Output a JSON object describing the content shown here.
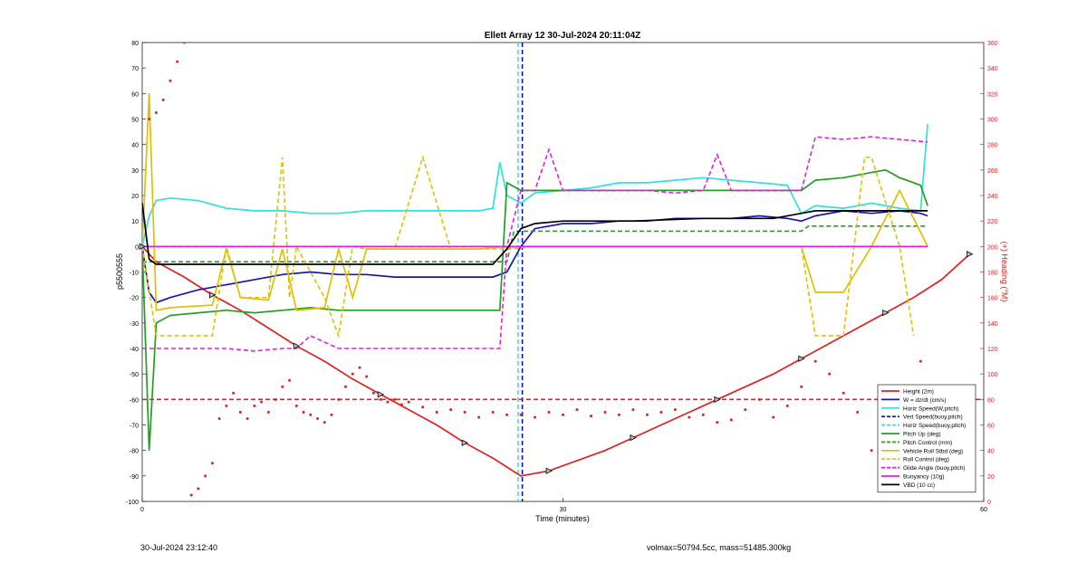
{
  "chart_data": {
    "type": "line",
    "title": "Ellett Array 12 30-Jul-2024 20:11:04Z",
    "xlabel": "Time (minutes)",
    "ylabel": "p5500555",
    "y2label": "(+) Heading (°M)",
    "xlim": [
      0,
      60
    ],
    "ylim": [
      -100,
      80
    ],
    "y2lim": [
      0,
      360
    ],
    "xticks": [
      "0",
      "30",
      "60"
    ],
    "yticks": [
      80,
      70,
      60,
      50,
      40,
      30,
      20,
      10,
      0,
      -10,
      -20,
      -30,
      -40,
      -50,
      -60,
      -70,
      -80,
      -90,
      -100
    ],
    "y2ticks": [
      360,
      340,
      320,
      300,
      280,
      260,
      240,
      220,
      200,
      180,
      160,
      140,
      120,
      100,
      80,
      60,
      40,
      20,
      0
    ],
    "grid": false,
    "legend_position": "bottom-right",
    "reference_lines": [
      {
        "orientation": "vertical",
        "x": 27.1,
        "color": "#1010cc",
        "style": "dashed"
      },
      {
        "orientation": "vertical",
        "x": 26.8,
        "color": "#30dddd",
        "style": "dashed"
      },
      {
        "orientation": "horizontal",
        "y": -60,
        "color": "#dd2222",
        "style": "dashed"
      }
    ],
    "series": [
      {
        "name": "Height (2m)",
        "color": "#e02020",
        "style": "solid",
        "axis": "left",
        "x": [
          0,
          1,
          3,
          5,
          7,
          9,
          11,
          13,
          15,
          17,
          19,
          21,
          23,
          25,
          27,
          29,
          31,
          33,
          35,
          37,
          39,
          41,
          43,
          45,
          47,
          49,
          51,
          53,
          55,
          57,
          59
        ],
        "y": [
          0,
          -6,
          -12,
          -19,
          -25,
          -32,
          -39,
          -45,
          -52,
          -58,
          -64,
          -70,
          -77,
          -83,
          -90,
          -88,
          -84,
          -80,
          -75,
          -70,
          -65,
          -60,
          -55,
          -50,
          -44,
          -38,
          -32,
          -26,
          -20,
          -13,
          -3
        ]
      },
      {
        "name": "W = dz/dt (cm/s)",
        "color": "#1515b8",
        "style": "solid",
        "axis": "left",
        "x": [
          0,
          0.5,
          1,
          2,
          4,
          6,
          8,
          10,
          12,
          14,
          16,
          18,
          20,
          22,
          24,
          25,
          26,
          27,
          28,
          30,
          32,
          34,
          36,
          38,
          40,
          42,
          44,
          46,
          47,
          48,
          50,
          52,
          54,
          55.5,
          56
        ],
        "y": [
          0,
          -18,
          -22,
          -20,
          -17,
          -15,
          -13,
          -11,
          -10,
          -11,
          -11,
          -12,
          -12,
          -12,
          -12,
          -12,
          -10,
          0,
          7,
          9,
          9,
          10,
          10,
          11,
          11,
          11,
          12,
          11,
          10,
          12,
          14,
          13,
          14,
          13,
          12
        ]
      },
      {
        "name": "Horiz Speed(W,pitch)",
        "color": "#30e0e0",
        "style": "solid",
        "axis": "left",
        "x": [
          0,
          0.5,
          1,
          2,
          4,
          6,
          8,
          10,
          12,
          14,
          16,
          18,
          20,
          22,
          24,
          25,
          25.5,
          26,
          27,
          28,
          30,
          32,
          34,
          36,
          38,
          40,
          42,
          44,
          46,
          47,
          48,
          50,
          52,
          54,
          55.5,
          56
        ],
        "y": [
          0,
          12,
          18,
          19,
          18,
          15,
          14,
          14,
          13,
          13,
          14,
          14,
          14,
          14,
          14,
          15,
          33,
          20,
          17,
          21,
          22,
          23,
          25,
          25,
          26,
          27,
          26,
          25,
          24,
          13,
          16,
          15,
          17,
          15,
          14,
          48
        ]
      },
      {
        "name": "Vert Speed(buoy,pitch)",
        "color": "#1515b8",
        "style": "dashed",
        "axis": "left",
        "x": [
          0,
          27,
          56
        ],
        "y": [
          0,
          0,
          0
        ]
      },
      {
        "name": "Horiz Speed(buoy,pitch)",
        "color": "#30e0e0",
        "style": "dashed",
        "axis": "left",
        "x": [
          0,
          27,
          56
        ],
        "y": [
          0,
          0,
          0
        ]
      },
      {
        "name": "Pitch Up (deg)",
        "color": "#20a020",
        "style": "solid",
        "axis": "left",
        "x": [
          0,
          0.5,
          1,
          2,
          4,
          6,
          8,
          10,
          12,
          14,
          16,
          18,
          20,
          22,
          24,
          25.5,
          26,
          27,
          28,
          30,
          32,
          34,
          36,
          38,
          40,
          42,
          44,
          46,
          47,
          48,
          50,
          52,
          53,
          54,
          55.5,
          56
        ],
        "y": [
          0,
          -80,
          -30,
          -27,
          -26,
          -25,
          -26,
          -25,
          -24,
          -25,
          -25,
          -25,
          -25,
          -25,
          -25,
          -25,
          25,
          22,
          22,
          22,
          22,
          22,
          22,
          22,
          22,
          22,
          22,
          22,
          22,
          26,
          27,
          29,
          30,
          27,
          24,
          16
        ]
      },
      {
        "name": "Pitch Control (mm)",
        "color": "#20a020",
        "style": "dashed",
        "axis": "left",
        "x": [
          0,
          26,
          26.5,
          47,
          47.5,
          56
        ],
        "y": [
          -6,
          -6,
          6,
          6,
          8,
          8
        ]
      },
      {
        "name": "Vehicle Roll Stbd (deg)",
        "color": "#e0c000",
        "style": "solid",
        "axis": "left",
        "x": [
          0,
          0.5,
          1,
          2,
          5,
          6,
          7,
          9,
          10,
          11,
          13,
          14,
          15,
          16,
          18,
          20,
          22,
          24,
          26,
          28,
          30,
          35,
          40,
          45,
          47,
          48,
          50,
          52,
          54,
          56
        ],
        "y": [
          0,
          60,
          -25,
          -24,
          -23,
          -1,
          -20,
          -21,
          -1,
          -25,
          -24,
          -1,
          -20,
          -1,
          -1,
          -1,
          -1,
          -1,
          0,
          0,
          0,
          0,
          0,
          0,
          0,
          -18,
          -18,
          0,
          22,
          0
        ]
      },
      {
        "name": "Roll Control (deg)",
        "color": "#e0c000",
        "style": "dashed",
        "axis": "left",
        "x": [
          0,
          1,
          5,
          6,
          7,
          9,
          10,
          10.5,
          11,
          13,
          14,
          15,
          16,
          18,
          20,
          22,
          24,
          26,
          28,
          30,
          35,
          40,
          45,
          47,
          48,
          50,
          51.5,
          52,
          54,
          55
        ],
        "y": [
          0,
          -35,
          -35,
          0,
          -20,
          -20,
          35,
          -20,
          0,
          -20,
          -35,
          0,
          -1,
          -1,
          35,
          -1,
          -1,
          -1,
          0,
          0,
          0,
          0,
          0,
          0,
          -35,
          -35,
          35,
          35,
          0,
          -35
        ]
      },
      {
        "name": "Glide Angle (buoy,pitch)",
        "color": "#dd20dd",
        "style": "dashed",
        "axis": "left",
        "x": [
          0,
          1,
          4,
          6,
          8,
          10,
          11,
          12,
          14,
          16,
          18,
          20,
          22,
          24,
          25.5,
          26,
          27,
          28,
          29,
          30,
          32,
          34,
          36,
          38,
          40,
          41,
          42,
          44,
          46,
          47,
          48,
          50,
          52,
          54,
          56
        ],
        "y": [
          -40,
          -40,
          -40,
          -40,
          -41,
          -40,
          -40,
          -35,
          -40,
          -40,
          -40,
          -40,
          -40,
          -40,
          -40,
          0,
          22,
          22,
          38,
          22,
          22,
          22,
          22,
          21,
          22,
          36,
          22,
          22,
          22,
          22,
          43,
          42,
          43,
          42,
          41
        ]
      },
      {
        "name": "Buoyancy (10g)",
        "color": "#dd20dd",
        "style": "solid",
        "axis": "left",
        "x": [
          0,
          27,
          56
        ],
        "y": [
          0,
          0,
          0
        ]
      },
      {
        "name": "VBD (10 cc)",
        "color": "#000000",
        "style": "solid",
        "axis": "left",
        "x": [
          0,
          0.5,
          1,
          5,
          10,
          15,
          20,
          25,
          26,
          27,
          28,
          30,
          35,
          40,
          45,
          47,
          48,
          50,
          55,
          56
        ],
        "y": [
          17,
          -5,
          -7,
          -7,
          -7,
          -7,
          -7,
          -7,
          -1,
          7,
          9,
          10,
          10,
          11,
          11,
          13,
          14,
          14,
          14,
          14
        ]
      },
      {
        "name": "",
        "color": "#dd2222",
        "style": "dotted",
        "axis": "right",
        "x": [
          0.5,
          1,
          1.5,
          2,
          2.5,
          3,
          3.5,
          4,
          4.5,
          5,
          5.5,
          6,
          6.5,
          7,
          7.5,
          8,
          8.5,
          9,
          9.5,
          10,
          10.5,
          11,
          11.5,
          12,
          12.5,
          13,
          13.5,
          14,
          14.5,
          15,
          15.5,
          16,
          16.5,
          17,
          17.5,
          18,
          18.5,
          19,
          20,
          21,
          22,
          23,
          24,
          25,
          26,
          27,
          28,
          29,
          30,
          31,
          32,
          33,
          34,
          35,
          36,
          37,
          38,
          39,
          40,
          41,
          42,
          43,
          44,
          45,
          46,
          47,
          48,
          49,
          50,
          51,
          52,
          53,
          54,
          55,
          55.5
        ],
        "y": [
          300,
          305,
          315,
          330,
          345,
          360,
          5,
          10,
          20,
          30,
          65,
          75,
          85,
          70,
          65,
          75,
          78,
          70,
          80,
          90,
          95,
          75,
          70,
          68,
          65,
          62,
          68,
          80,
          90,
          100,
          105,
          98,
          85,
          80,
          78,
          80,
          76,
          78,
          74,
          70,
          72,
          70,
          66,
          70,
          68,
          68,
          66,
          70,
          68,
          72,
          67,
          70,
          68,
          72,
          68,
          70,
          72,
          66,
          68,
          62,
          64,
          72,
          80,
          66,
          75,
          90,
          110,
          100,
          85,
          70,
          40,
          48,
          60,
          80,
          110
        ]
      }
    ]
  },
  "footer": {
    "left": "30-Jul-2024 23:12:40",
    "right": "volmax=50794.5cc, mass=51485.300kg"
  }
}
